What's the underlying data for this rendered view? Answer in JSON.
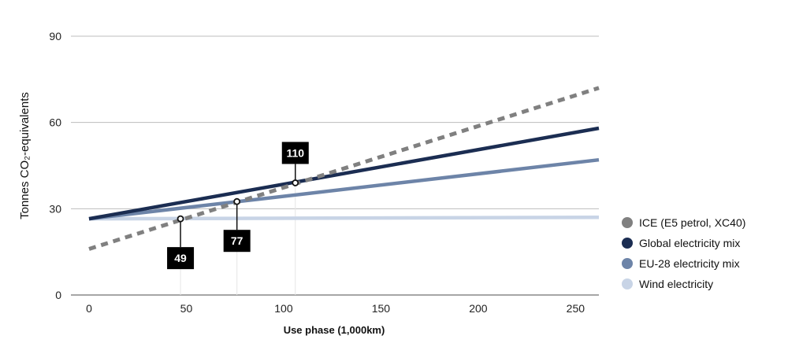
{
  "chart_data": {
    "type": "line",
    "xlabel": "Use phase (1,000km)",
    "ylabel": "Tonnes CO₂-equivalents",
    "xlim": [
      0,
      262
    ],
    "ylim": [
      0,
      90
    ],
    "xticks": [
      "0",
      "50",
      "100",
      "150",
      "200",
      "250"
    ],
    "xtick_values": [
      0,
      50,
      100,
      150,
      200,
      250
    ],
    "yticks": [
      "0",
      "30",
      "60",
      "90"
    ],
    "ytick_values": [
      0,
      30,
      60,
      90
    ],
    "grid": "horizontal",
    "legend_position": "right",
    "series": [
      {
        "name": "ICE (E5 petrol, XC40)",
        "color": "#808080",
        "style": "dashed",
        "x": [
          0,
          262
        ],
        "y": [
          16,
          72
        ]
      },
      {
        "name": "Global electricity mix",
        "color": "#1b2d52",
        "style": "solid",
        "x": [
          0,
          262
        ],
        "y": [
          26.5,
          58
        ]
      },
      {
        "name": "EU-28 electricity mix",
        "color": "#6d84a8",
        "style": "solid",
        "x": [
          0,
          262
        ],
        "y": [
          26.5,
          47
        ]
      },
      {
        "name": "Wind electricity",
        "color": "#c8d4e6",
        "style": "solid",
        "x": [
          0,
          262
        ],
        "y": [
          26.5,
          27
        ]
      }
    ],
    "annotations": [
      {
        "label": "110",
        "x": 106,
        "y": 39,
        "position": "above"
      },
      {
        "label": "77",
        "x": 76,
        "y": 32.5,
        "position": "below"
      },
      {
        "label": "49",
        "x": 47,
        "y": 26.5,
        "position": "below"
      }
    ]
  }
}
